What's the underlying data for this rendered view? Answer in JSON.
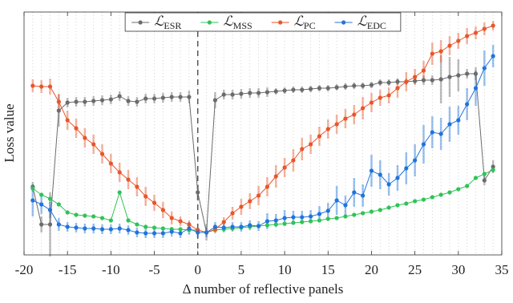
{
  "chart_data": {
    "type": "line",
    "xlabel": "Δ number of reflective panels",
    "ylabel": "Loss value",
    "legend_symbol": "ℒ",
    "legend_position": "top",
    "x": [
      -19,
      -18,
      -17,
      -16,
      -15,
      -14,
      -13,
      -12,
      -11,
      -10,
      -9,
      -8,
      -7,
      -6,
      -5,
      -4,
      -3,
      -2,
      -1,
      0,
      1,
      2,
      3,
      4,
      5,
      6,
      7,
      8,
      9,
      10,
      11,
      12,
      13,
      14,
      15,
      16,
      17,
      18,
      19,
      20,
      21,
      22,
      23,
      24,
      25,
      26,
      27,
      28,
      29,
      30,
      31,
      32,
      33,
      34
    ],
    "xlim": [
      -20,
      35
    ],
    "xticks": [
      -20,
      -15,
      -10,
      -5,
      0,
      5,
      10,
      15,
      20,
      25,
      30,
      35
    ],
    "ylim": [
      0,
      303
    ],
    "vline": 0,
    "grid": true,
    "series": [
      {
        "name": "ESR",
        "color": "#6b6b6b",
        "values": [
          85,
          38,
          38,
          180,
          190,
          191,
          191,
          192,
          193,
          194,
          198,
          192,
          191,
          195,
          195,
          196,
          197,
          197,
          197,
          78,
          28,
          193,
          200,
          200,
          201,
          202,
          202,
          203,
          204,
          205,
          206,
          206,
          207,
          208,
          208,
          209,
          210,
          211,
          211,
          212,
          215,
          215,
          216,
          216,
          217,
          218,
          218,
          219,
          222,
          224,
          226,
          226,
          93,
          110
        ],
        "errors": [
          6,
          10,
          40,
          20,
          6,
          6,
          6,
          6,
          6,
          6,
          6,
          6,
          6,
          6,
          6,
          6,
          6,
          6,
          8,
          10,
          10,
          10,
          6,
          6,
          6,
          6,
          6,
          6,
          4,
          4,
          4,
          4,
          4,
          4,
          4,
          4,
          4,
          4,
          4,
          4,
          4,
          4,
          4,
          4,
          4,
          6,
          6,
          30,
          25,
          20,
          6,
          8,
          6,
          8
        ]
      },
      {
        "name": "MSS",
        "color": "#2ec455",
        "values": [
          83,
          75,
          70,
          63,
          53,
          50,
          49,
          48,
          46,
          43,
          78,
          43,
          38,
          35,
          34,
          33,
          32,
          32,
          31,
          31,
          28,
          31,
          32,
          33,
          34,
          35,
          36,
          37,
          38,
          39,
          40,
          41,
          42,
          43,
          45,
          46,
          48,
          50,
          52,
          54,
          56,
          59,
          62,
          64,
          67,
          69,
          72,
          75,
          78,
          82,
          86,
          96,
          101,
          106
        ]
      },
      {
        "name": "PC",
        "color": "#e8562a",
        "values": [
          211,
          210,
          210,
          191,
          168,
          158,
          146,
          138,
          126,
          114,
          103,
          94,
          85,
          73,
          65,
          56,
          46,
          42,
          38,
          31,
          28,
          32,
          41,
          52,
          60,
          67,
          74,
          85,
          98,
          109,
          118,
          132,
          138,
          148,
          157,
          163,
          170,
          175,
          183,
          190,
          196,
          199,
          208,
          216,
          222,
          230,
          251,
          254,
          261,
          267,
          273,
          277,
          282,
          286
        ],
        "errors": [
          8,
          8,
          10,
          10,
          12,
          12,
          12,
          12,
          12,
          12,
          12,
          12,
          12,
          12,
          10,
          10,
          8,
          6,
          5,
          4,
          4,
          5,
          6,
          8,
          10,
          10,
          12,
          12,
          14,
          12,
          14,
          14,
          12,
          12,
          12,
          12,
          12,
          12,
          14,
          12,
          10,
          10,
          12,
          12,
          10,
          12,
          14,
          14,
          12,
          10,
          10,
          8,
          8,
          6
        ]
      },
      {
        "name": "EDC",
        "color": "#1f74dc",
        "values": [
          68,
          63,
          56,
          38,
          35,
          34,
          33,
          33,
          32,
          32,
          33,
          31,
          28,
          27,
          27,
          27,
          29,
          27,
          33,
          28,
          28,
          35,
          34,
          35,
          35,
          37,
          36,
          42,
          43,
          46,
          47,
          47,
          48,
          51,
          55,
          68,
          62,
          78,
          74,
          105,
          100,
          88,
          96,
          108,
          118,
          138,
          153,
          151,
          163,
          168,
          188,
          208,
          233,
          248
        ],
        "errors": [
          20,
          12,
          10,
          8,
          6,
          6,
          6,
          6,
          6,
          6,
          6,
          6,
          6,
          6,
          6,
          6,
          6,
          6,
          8,
          6,
          6,
          6,
          6,
          6,
          6,
          6,
          6,
          10,
          8,
          10,
          8,
          8,
          8,
          10,
          10,
          18,
          12,
          18,
          14,
          20,
          18,
          14,
          16,
          20,
          20,
          24,
          20,
          20,
          22,
          18,
          20,
          22,
          22,
          14
        ]
      }
    ]
  }
}
